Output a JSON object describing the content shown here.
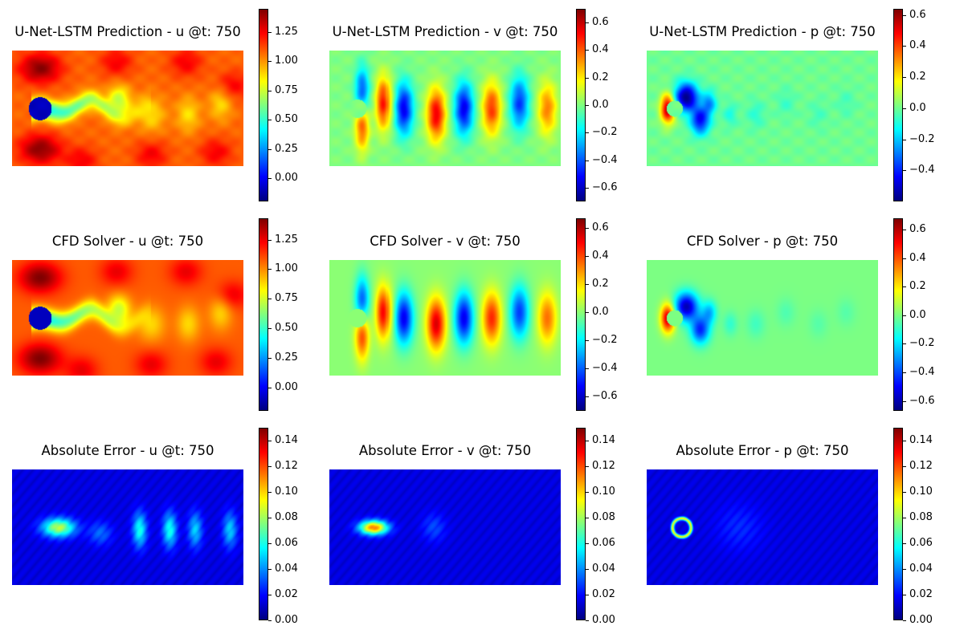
{
  "figure": {
    "timestep": "750",
    "colormap": [
      "#00007f",
      "#0000ff",
      "#007fff",
      "#00ffff",
      "#7fff7f",
      "#ffff00",
      "#ff7f00",
      "#ff0000",
      "#7f0000"
    ]
  },
  "chart_data": [
    {
      "type": "heatmap",
      "title": "U-Net-LSTM Prediction - u @t: 750",
      "field": "u",
      "source": "prediction",
      "vmin": -0.2,
      "vmax": 1.45,
      "colorbar_ticks": [
        "0.00",
        "0.25",
        "0.50",
        "0.75",
        "1.00",
        "1.25"
      ],
      "colorbar_tick_values": [
        0.0,
        0.25,
        0.5,
        0.75,
        1.0,
        1.25
      ]
    },
    {
      "type": "heatmap",
      "title": "U-Net-LSTM Prediction - v @t: 750",
      "field": "v",
      "source": "prediction",
      "vmin": -0.7,
      "vmax": 0.7,
      "colorbar_ticks": [
        "−0.6",
        "−0.4",
        "−0.2",
        "0.0",
        "0.2",
        "0.4",
        "0.6"
      ],
      "colorbar_tick_values": [
        -0.6,
        -0.4,
        -0.2,
        0.0,
        0.2,
        0.4,
        0.6
      ]
    },
    {
      "type": "heatmap",
      "title": "U-Net-LSTM Prediction - p @t: 750",
      "field": "p",
      "source": "prediction",
      "vmin": -0.6,
      "vmax": 0.64,
      "colorbar_ticks": [
        "−0.4",
        "−0.2",
        "0.0",
        "0.2",
        "0.4",
        "0.6"
      ],
      "colorbar_tick_values": [
        -0.4,
        -0.2,
        0.0,
        0.2,
        0.4,
        0.6
      ]
    },
    {
      "type": "heatmap",
      "title": "CFD Solver - u @t: 750",
      "field": "u",
      "source": "cfd",
      "vmin": -0.2,
      "vmax": 1.43,
      "colorbar_ticks": [
        "0.00",
        "0.25",
        "0.50",
        "0.75",
        "1.00",
        "1.25"
      ],
      "colorbar_tick_values": [
        0.0,
        0.25,
        0.5,
        0.75,
        1.0,
        1.25
      ]
    },
    {
      "type": "heatmap",
      "title": "CFD Solver - v @t: 750",
      "field": "v",
      "source": "cfd",
      "vmin": -0.7,
      "vmax": 0.67,
      "colorbar_ticks": [
        "−0.6",
        "−0.4",
        "−0.2",
        "0.0",
        "0.2",
        "0.4",
        "0.6"
      ],
      "colorbar_tick_values": [
        -0.6,
        -0.4,
        -0.2,
        0.0,
        0.2,
        0.4,
        0.6
      ]
    },
    {
      "type": "heatmap",
      "title": "CFD Solver - p @t: 750",
      "field": "p",
      "source": "cfd",
      "vmin": -0.67,
      "vmax": 0.68,
      "colorbar_ticks": [
        "−0.6",
        "−0.4",
        "−0.2",
        "0.0",
        "0.2",
        "0.4",
        "0.6"
      ],
      "colorbar_tick_values": [
        -0.6,
        -0.4,
        -0.2,
        0.0,
        0.2,
        0.4,
        0.6
      ]
    },
    {
      "type": "heatmap",
      "title": "Absolute Error - u @t: 750",
      "field": "u",
      "source": "error",
      "vmin": 0.0,
      "vmax": 0.15,
      "colorbar_ticks": [
        "0.00",
        "0.02",
        "0.04",
        "0.06",
        "0.08",
        "0.10",
        "0.12",
        "0.14"
      ],
      "colorbar_tick_values": [
        0.0,
        0.02,
        0.04,
        0.06,
        0.08,
        0.1,
        0.12,
        0.14
      ]
    },
    {
      "type": "heatmap",
      "title": "Absolute Error - v @t: 750",
      "field": "v",
      "source": "error",
      "vmin": 0.0,
      "vmax": 0.15,
      "colorbar_ticks": [
        "0.00",
        "0.02",
        "0.04",
        "0.06",
        "0.08",
        "0.10",
        "0.12",
        "0.14"
      ],
      "colorbar_tick_values": [
        0.0,
        0.02,
        0.04,
        0.06,
        0.08,
        0.1,
        0.12,
        0.14
      ]
    },
    {
      "type": "heatmap",
      "title": "Absolute Error - p @t: 750",
      "field": "p",
      "source": "error",
      "vmin": 0.0,
      "vmax": 0.15,
      "colorbar_ticks": [
        "0.00",
        "0.02",
        "0.04",
        "0.06",
        "0.08",
        "0.10",
        "0.12",
        "0.14"
      ],
      "colorbar_tick_values": [
        0.0,
        0.02,
        0.04,
        0.06,
        0.08,
        0.1,
        0.12,
        0.14
      ]
    }
  ]
}
